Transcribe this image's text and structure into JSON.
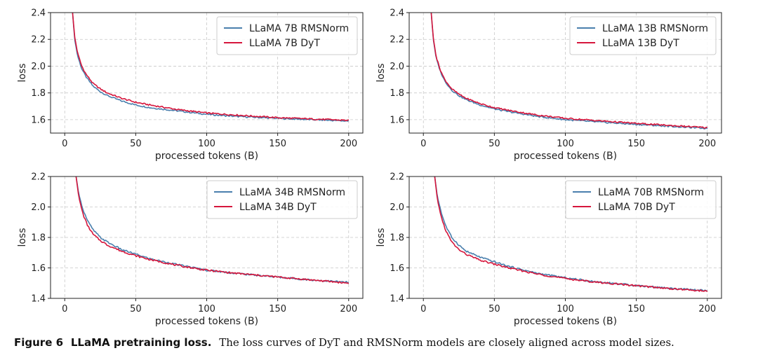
{
  "caption": {
    "label": "Figure 6",
    "title": "LLaMA pretraining loss.",
    "text": "The loss curves of DyT and RMSNorm models are closely aligned across model sizes."
  },
  "colors": {
    "rmsnorm": "#4a7fad",
    "dyt": "#d6163c"
  },
  "chart_data": [
    {
      "type": "line",
      "xlabel": "processed tokens (B)",
      "ylabel": "loss",
      "xlim": [
        -10,
        210
      ],
      "ylim": [
        1.5,
        2.4
      ],
      "xticks": [
        0,
        50,
        100,
        150,
        200
      ],
      "yticks": [
        1.6,
        1.8,
        2.0,
        2.2,
        2.4
      ],
      "ytick_labels": [
        "1.6",
        "1.8",
        "2.0",
        "2.2",
        "2.4"
      ],
      "grid": true,
      "legend": "upper right",
      "series": [
        {
          "name": "LLaMA 7B RMSNorm",
          "x": [
            5.5,
            7,
            9,
            12,
            15,
            20,
            25,
            30,
            40,
            50,
            60,
            80,
            100,
            120,
            150,
            175,
            200
          ],
          "y": [
            2.4,
            2.2,
            2.08,
            1.98,
            1.92,
            1.85,
            1.81,
            1.78,
            1.74,
            1.71,
            1.69,
            1.665,
            1.64,
            1.625,
            1.61,
            1.6,
            1.59
          ]
        },
        {
          "name": "LLaMA 7B DyT",
          "x": [
            5.5,
            7,
            9,
            12,
            15,
            20,
            25,
            30,
            40,
            50,
            60,
            80,
            100,
            120,
            150,
            175,
            200
          ],
          "y": [
            2.4,
            2.22,
            2.1,
            2.0,
            1.94,
            1.87,
            1.83,
            1.8,
            1.76,
            1.73,
            1.71,
            1.675,
            1.65,
            1.635,
            1.615,
            1.605,
            1.595
          ]
        }
      ]
    },
    {
      "type": "line",
      "xlabel": "processed tokens (B)",
      "ylabel": "loss",
      "xlim": [
        -10,
        210
      ],
      "ylim": [
        1.5,
        2.4
      ],
      "xticks": [
        0,
        50,
        100,
        150,
        200
      ],
      "yticks": [
        1.6,
        1.8,
        2.0,
        2.2,
        2.4
      ],
      "ytick_labels": [
        "1.6",
        "1.8",
        "2.0",
        "2.2",
        "2.4"
      ],
      "grid": true,
      "legend": "upper right",
      "series": [
        {
          "name": "LLaMA 13B RMSNorm",
          "x": [
            5.5,
            7,
            9,
            12,
            15,
            20,
            25,
            30,
            40,
            50,
            60,
            80,
            100,
            120,
            150,
            175,
            200
          ],
          "y": [
            2.4,
            2.2,
            2.06,
            1.96,
            1.89,
            1.82,
            1.78,
            1.75,
            1.71,
            1.68,
            1.66,
            1.625,
            1.6,
            1.585,
            1.565,
            1.55,
            1.535
          ]
        },
        {
          "name": "LLaMA 13B DyT",
          "x": [
            5.5,
            7,
            9,
            12,
            15,
            20,
            25,
            30,
            40,
            50,
            60,
            80,
            100,
            120,
            150,
            175,
            200
          ],
          "y": [
            2.4,
            2.21,
            2.07,
            1.97,
            1.9,
            1.83,
            1.79,
            1.76,
            1.72,
            1.69,
            1.67,
            1.635,
            1.61,
            1.595,
            1.572,
            1.556,
            1.54
          ]
        }
      ]
    },
    {
      "type": "line",
      "xlabel": "processed tokens (B)",
      "ylabel": "loss",
      "xlim": [
        -10,
        210
      ],
      "ylim": [
        1.4,
        2.2
      ],
      "xticks": [
        0,
        50,
        100,
        150,
        200
      ],
      "yticks": [
        1.4,
        1.6,
        1.8,
        2.0,
        2.2
      ],
      "ytick_labels": [
        "1.4",
        "1.6",
        "1.8",
        "2.0",
        "2.2"
      ],
      "grid": true,
      "legend": "upper right",
      "series": [
        {
          "name": "LLaMA 34B RMSNorm",
          "x": [
            8,
            10,
            13,
            16,
            20,
            25,
            30,
            40,
            50,
            60,
            80,
            100,
            120,
            150,
            175,
            200
          ],
          "y": [
            2.2,
            2.08,
            1.98,
            1.91,
            1.85,
            1.8,
            1.77,
            1.72,
            1.69,
            1.66,
            1.62,
            1.585,
            1.565,
            1.54,
            1.52,
            1.505
          ]
        },
        {
          "name": "LLaMA 34B DyT",
          "x": [
            8,
            10,
            13,
            16,
            20,
            25,
            30,
            40,
            50,
            60,
            80,
            100,
            120,
            150,
            175,
            200
          ],
          "y": [
            2.2,
            2.06,
            1.95,
            1.88,
            1.82,
            1.78,
            1.75,
            1.71,
            1.68,
            1.655,
            1.615,
            1.585,
            1.565,
            1.54,
            1.52,
            1.5
          ]
        }
      ]
    },
    {
      "type": "line",
      "xlabel": "processed tokens (B)",
      "ylabel": "loss",
      "xlim": [
        -10,
        210
      ],
      "ylim": [
        1.4,
        2.2
      ],
      "xticks": [
        0,
        50,
        100,
        150,
        200
      ],
      "yticks": [
        1.4,
        1.6,
        1.8,
        2.0,
        2.2
      ],
      "ytick_labels": [
        "1.4",
        "1.6",
        "1.8",
        "2.0",
        "2.2"
      ],
      "grid": true,
      "legend": "upper right",
      "series": [
        {
          "name": "LLaMA 70B RMSNorm",
          "x": [
            8,
            10,
            13,
            16,
            20,
            25,
            30,
            40,
            50,
            60,
            80,
            100,
            120,
            150,
            175,
            200
          ],
          "y": [
            2.2,
            2.06,
            1.95,
            1.87,
            1.8,
            1.75,
            1.71,
            1.67,
            1.64,
            1.61,
            1.565,
            1.535,
            1.51,
            1.485,
            1.465,
            1.45
          ]
        },
        {
          "name": "LLaMA 70B DyT",
          "x": [
            8,
            10,
            13,
            16,
            20,
            25,
            30,
            40,
            50,
            60,
            80,
            100,
            120,
            150,
            175,
            200
          ],
          "y": [
            2.2,
            2.04,
            1.92,
            1.84,
            1.77,
            1.72,
            1.69,
            1.65,
            1.625,
            1.6,
            1.56,
            1.53,
            1.508,
            1.483,
            1.463,
            1.447
          ]
        }
      ]
    }
  ]
}
